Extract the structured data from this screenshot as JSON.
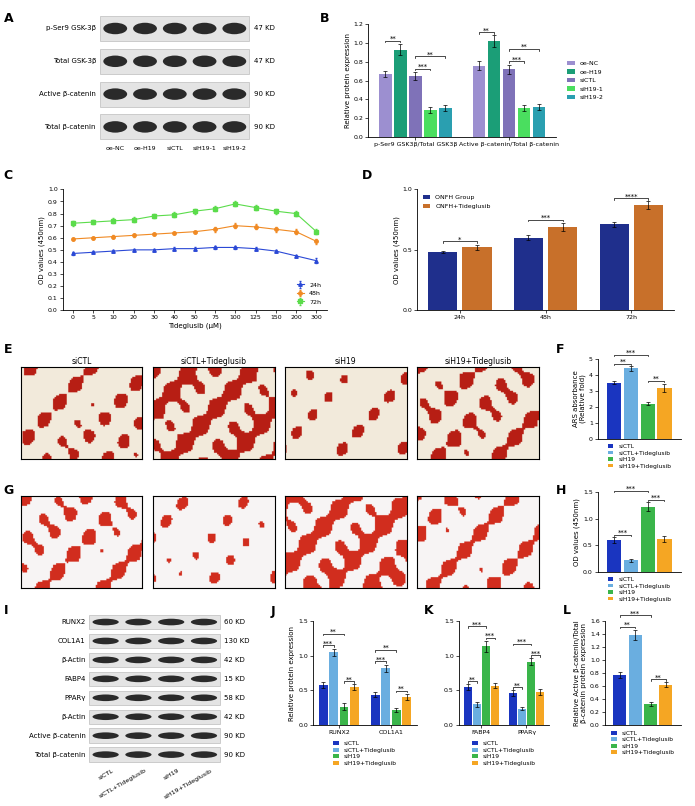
{
  "chart_data": [
    {
      "panel": "B",
      "type": "bar",
      "categories": [
        "p-Ser9 GSK3β/Total GSK3β",
        "Active β-catenin/Total β-catenin"
      ],
      "series": [
        {
          "name": "oe-NC",
          "color": "#9c8fd0",
          "values": [
            0.67,
            0.76
          ],
          "errors": [
            0.03,
            0.05
          ]
        },
        {
          "name": "oe-H19",
          "color": "#1b9e77",
          "values": [
            0.93,
            1.02
          ],
          "errors": [
            0.06,
            0.06
          ]
        },
        {
          "name": "siCTL",
          "color": "#7f72b8",
          "values": [
            0.65,
            0.72
          ],
          "errors": [
            0.04,
            0.05
          ]
        },
        {
          "name": "siH19-1",
          "color": "#4ade5f",
          "values": [
            0.29,
            0.31
          ],
          "errors": [
            0.03,
            0.03
          ]
        },
        {
          "name": "siH19-2",
          "color": "#2a9fb0",
          "values": [
            0.31,
            0.32
          ],
          "errors": [
            0.03,
            0.03
          ]
        }
      ],
      "ylabel": "Relative protein expression",
      "ylim": [
        0,
        1.2
      ],
      "yticks": [
        {
          "value": 0,
          "label": "0.0"
        },
        0.2,
        0.4,
        0.6,
        0.8,
        {
          "value": 1,
          "label": "1.0"
        },
        1.2
      ],
      "legend": "right",
      "annotations": [
        {
          "group": 0,
          "from": 0,
          "to": 1,
          "text": "**"
        },
        {
          "group": 0,
          "from": 2,
          "to": 3,
          "text": "***"
        },
        {
          "group": 0,
          "from": 2,
          "to": 4,
          "text": "**"
        },
        {
          "group": 1,
          "from": 0,
          "to": 1,
          "text": "**"
        },
        {
          "group": 1,
          "from": 2,
          "to": 3,
          "text": "***"
        },
        {
          "group": 1,
          "from": 2,
          "to": 4,
          "text": "**"
        }
      ]
    },
    {
      "panel": "C",
      "type": "line",
      "categories": [
        "0",
        "5",
        "10",
        "20",
        "30",
        "40",
        "50",
        "75",
        "100",
        "125",
        "150",
        "200",
        "300"
      ],
      "series": [
        {
          "name": "24h",
          "color": "#2b49d6",
          "marker": "triangle",
          "values": [
            0.47,
            0.48,
            0.49,
            0.5,
            0.5,
            0.51,
            0.51,
            0.52,
            0.52,
            0.51,
            0.49,
            0.45,
            0.41
          ],
          "errors": [
            0.01,
            0.01,
            0.01,
            0.01,
            0.01,
            0.01,
            0.01,
            0.01,
            0.01,
            0.01,
            0.01,
            0.01,
            0.02
          ]
        },
        {
          "name": "48h",
          "color": "#f08a24",
          "marker": "circle",
          "values": [
            0.59,
            0.6,
            0.61,
            0.62,
            0.63,
            0.64,
            0.65,
            0.67,
            0.7,
            0.69,
            0.67,
            0.65,
            0.57
          ],
          "errors": [
            0.01,
            0.01,
            0.01,
            0.01,
            0.01,
            0.01,
            0.01,
            0.02,
            0.02,
            0.02,
            0.02,
            0.02,
            0.02
          ]
        },
        {
          "name": "72h",
          "color": "#5bdc4b",
          "marker": "square",
          "values": [
            0.72,
            0.73,
            0.74,
            0.75,
            0.78,
            0.79,
            0.82,
            0.84,
            0.88,
            0.85,
            0.82,
            0.8,
            0.65
          ],
          "errors": [
            0.02,
            0.02,
            0.02,
            0.02,
            0.02,
            0.02,
            0.02,
            0.02,
            0.02,
            0.02,
            0.02,
            0.02,
            0.02
          ]
        }
      ],
      "xlabel": "Tideglusib (μM)",
      "ylabel": "OD values (450nm)",
      "ylim": [
        0,
        1.0
      ],
      "yticks": [
        {
          "value": 0,
          "label": "0.0"
        },
        0.1,
        0.2,
        0.3,
        0.4,
        0.5,
        0.6,
        0.7,
        0.8,
        0.9,
        {
          "value": 1,
          "label": "1.0"
        }
      ],
      "legend": "lower right"
    },
    {
      "panel": "D",
      "type": "bar",
      "categories": [
        "24h",
        "48h",
        "72h"
      ],
      "series": [
        {
          "name": "ONFH Group",
          "color": "#1f2f8c",
          "values": [
            0.48,
            0.6,
            0.71
          ],
          "errors": [
            0.01,
            0.02,
            0.02
          ]
        },
        {
          "name": "ONFH+Tideglusib",
          "color": "#c8702a",
          "values": [
            0.52,
            0.69,
            0.87
          ],
          "errors": [
            0.02,
            0.03,
            0.03
          ]
        }
      ],
      "ylabel": "OD values (450nm)",
      "ylim": [
        0,
        1.0
      ],
      "yticks": [
        {
          "value": 0,
          "label": "0.0"
        },
        0.5,
        {
          "value": 1,
          "label": "1.0"
        }
      ],
      "legend": "upper left",
      "annotations": [
        {
          "group": 0,
          "from": 0,
          "to": 1,
          "text": "*"
        },
        {
          "group": 1,
          "from": 0,
          "to": 1,
          "text": "***"
        },
        {
          "group": 2,
          "from": 0,
          "to": 1,
          "text": "****"
        }
      ]
    },
    {
      "panel": "F",
      "type": "bar",
      "categories": [
        null
      ],
      "series": [
        {
          "name": "siCTL",
          "color": "#1a35c0",
          "values": [
            3.5
          ],
          "errors": [
            0.1
          ]
        },
        {
          "name": "siCTL+Tideglusib",
          "color": "#6aaee0",
          "values": [
            4.4
          ],
          "errors": [
            0.15
          ]
        },
        {
          "name": "siH19",
          "color": "#3ab54a",
          "values": [
            2.2
          ],
          "errors": [
            0.1
          ]
        },
        {
          "name": "siH19+Tideglusib",
          "color": "#f5a623",
          "values": [
            3.2
          ],
          "errors": [
            0.25
          ]
        }
      ],
      "ylabel": "ARS absorbance\n(Relative fold)",
      "ylim": [
        0,
        5
      ],
      "yticks": [
        0,
        1,
        2,
        3,
        4,
        5
      ],
      "legend": "below",
      "annotations": [
        {
          "group": 0,
          "from": 0,
          "to": 1,
          "text": "**"
        },
        {
          "group": 0,
          "from": 2,
          "to": 3,
          "text": "**"
        },
        {
          "group": 0,
          "from": 0,
          "to": 2,
          "text": "***"
        }
      ]
    },
    {
      "panel": "H",
      "type": "bar",
      "categories": [
        null
      ],
      "series": [
        {
          "name": "siCTL",
          "color": "#1a35c0",
          "values": [
            0.6
          ],
          "errors": [
            0.05
          ]
        },
        {
          "name": "siCTL+Tideglusib",
          "color": "#6aaee0",
          "values": [
            0.22
          ],
          "errors": [
            0.03
          ]
        },
        {
          "name": "siH19",
          "color": "#3ab54a",
          "values": [
            1.22
          ],
          "errors": [
            0.08
          ]
        },
        {
          "name": "siH19+Tideglusib",
          "color": "#f5a623",
          "values": [
            0.62
          ],
          "errors": [
            0.06
          ]
        }
      ],
      "ylabel": "OD values (450nm)",
      "ylim": [
        0,
        1.5
      ],
      "yticks": [
        {
          "value": 0,
          "label": "0.0"
        },
        0.5,
        {
          "value": 1,
          "label": "1.0"
        },
        1.5
      ],
      "legend": "below",
      "annotations": [
        {
          "group": 0,
          "from": 0,
          "to": 1,
          "text": "***"
        },
        {
          "group": 0,
          "from": 2,
          "to": 3,
          "text": "***"
        },
        {
          "group": 0,
          "from": 0,
          "to": 2,
          "text": "***"
        }
      ]
    },
    {
      "panel": "J",
      "type": "bar",
      "categories": [
        "RUNX2",
        "COL1A1"
      ],
      "series": [
        {
          "name": "siCTL",
          "color": "#1a35c0",
          "values": [
            0.58,
            0.44
          ],
          "errors": [
            0.04,
            0.04
          ]
        },
        {
          "name": "siCTL+Tideglusib",
          "color": "#6aaee0",
          "values": [
            1.05,
            0.82
          ],
          "errors": [
            0.05,
            0.05
          ]
        },
        {
          "name": "siH19",
          "color": "#3ab54a",
          "values": [
            0.27,
            0.22
          ],
          "errors": [
            0.05,
            0.03
          ]
        },
        {
          "name": "siH19+Tideglusib",
          "color": "#f5a623",
          "values": [
            0.55,
            0.41
          ],
          "errors": [
            0.04,
            0.04
          ]
        }
      ],
      "ylabel": "Relative protein expression",
      "ylim": [
        0,
        1.5
      ],
      "yticks": [
        {
          "value": 0,
          "label": "0.0"
        },
        0.5,
        {
          "value": 1,
          "label": "1.0"
        },
        1.5
      ],
      "legend": "below",
      "annotations": [
        {
          "group": 0,
          "from": 0,
          "to": 1,
          "text": "***"
        },
        {
          "group": 0,
          "from": 2,
          "to": 3,
          "text": "**"
        },
        {
          "group": 0,
          "from": 0,
          "to": 2,
          "text": "**"
        },
        {
          "group": 1,
          "from": 0,
          "to": 1,
          "text": "***"
        },
        {
          "group": 1,
          "from": 2,
          "to": 3,
          "text": "**"
        },
        {
          "group": 1,
          "from": 0,
          "to": 2,
          "text": "**"
        }
      ]
    },
    {
      "panel": "K",
      "type": "bar",
      "categories": [
        "FABP4",
        "PPARγ"
      ],
      "series": [
        {
          "name": "siCTL",
          "color": "#1a35c0",
          "values": [
            0.55,
            0.46
          ],
          "errors": [
            0.04,
            0.04
          ]
        },
        {
          "name": "siCTL+Tideglusib",
          "color": "#6aaee0",
          "values": [
            0.3,
            0.24
          ],
          "errors": [
            0.03,
            0.02
          ]
        },
        {
          "name": "siH19",
          "color": "#3ab54a",
          "values": [
            1.13,
            0.91
          ],
          "errors": [
            0.08,
            0.05
          ]
        },
        {
          "name": "siH19+Tideglusib",
          "color": "#f5a623",
          "values": [
            0.57,
            0.48
          ],
          "errors": [
            0.03,
            0.04
          ]
        }
      ],
      "ylim": [
        0,
        1.5
      ],
      "yticks": [
        {
          "value": 0,
          "label": "0.0"
        },
        0.5,
        {
          "value": 1,
          "label": "1.0"
        },
        1.5
      ],
      "legend": "below",
      "annotations": [
        {
          "group": 0,
          "from": 0,
          "to": 1,
          "text": "**"
        },
        {
          "group": 0,
          "from": 2,
          "to": 3,
          "text": "***"
        },
        {
          "group": 0,
          "from": 0,
          "to": 2,
          "text": "***"
        },
        {
          "group": 1,
          "from": 0,
          "to": 1,
          "text": "**"
        },
        {
          "group": 1,
          "from": 2,
          "to": 3,
          "text": "***"
        },
        {
          "group": 1,
          "from": 0,
          "to": 2,
          "text": "***"
        }
      ]
    },
    {
      "panel": "L",
      "type": "bar",
      "categories": [
        null
      ],
      "series": [
        {
          "name": "siCTL",
          "color": "#1a35c0",
          "values": [
            0.77
          ],
          "errors": [
            0.05
          ]
        },
        {
          "name": "siCTL+Tideglusib",
          "color": "#6aaee0",
          "values": [
            1.38
          ],
          "errors": [
            0.08
          ]
        },
        {
          "name": "siH19",
          "color": "#3ab54a",
          "values": [
            0.32
          ],
          "errors": [
            0.03
          ]
        },
        {
          "name": "siH19+Tideglusib",
          "color": "#f5a623",
          "values": [
            0.62
          ],
          "errors": [
            0.04
          ]
        }
      ],
      "ylabel": "Relative Active β-catenin/Total\nβ-catenin protein expression",
      "ylim": [
        0,
        1.6
      ],
      "yticks": [
        {
          "value": 0,
          "label": "0.0"
        },
        0.2,
        0.4,
        0.6,
        0.8,
        {
          "value": 1,
          "label": "1.0"
        },
        1.2,
        1.4,
        1.6
      ],
      "legend": "below",
      "annotations": [
        {
          "group": 0,
          "from": 0,
          "to": 1,
          "text": "**"
        },
        {
          "group": 0,
          "from": 2,
          "to": 3,
          "text": "**"
        },
        {
          "group": 0,
          "from": 0,
          "to": 2,
          "text": "***"
        }
      ]
    }
  ],
  "blots": [
    {
      "panel": "A",
      "rows": [
        {
          "label": "p-Ser9 GSK-3β",
          "size": "47 KD"
        },
        {
          "label": "Total GSK-3β",
          "size": "47 KD"
        },
        {
          "label": "Active β-catenin",
          "size": "90 KD"
        },
        {
          "label": "Total β-catenin",
          "size": "90 KD"
        }
      ],
      "lanes": [
        "oe-NC",
        "oe-H19",
        "siCTL",
        "siH19-1",
        "siH19-2"
      ]
    },
    {
      "panel": "I",
      "rows": [
        {
          "label": "RUNX2",
          "size": "60 KD"
        },
        {
          "label": "COL1A1",
          "size": "130 KD"
        },
        {
          "label": "β-Actin",
          "size": "42 KD"
        },
        {
          "label": "FABP4",
          "size": "15 KD"
        },
        {
          "label": "PPARγ",
          "size": "58 KD"
        },
        {
          "label": "β-Actin",
          "size": "42 KD"
        },
        {
          "label": "Active β-catenin",
          "size": "90 KD"
        },
        {
          "label": "Total β-catenin",
          "size": "90 KD"
        }
      ],
      "lanes": [
        "siCTL",
        "siCTL+Tideglusib",
        "siH19",
        "siH19+Tideglusib"
      ]
    }
  ],
  "image_rows": [
    {
      "panel": "E",
      "labels": [
        "siCTL",
        "siCTL+Tideglusib",
        "siH19",
        "siH19+Tideglusib"
      ]
    },
    {
      "panel": "G"
    }
  ]
}
